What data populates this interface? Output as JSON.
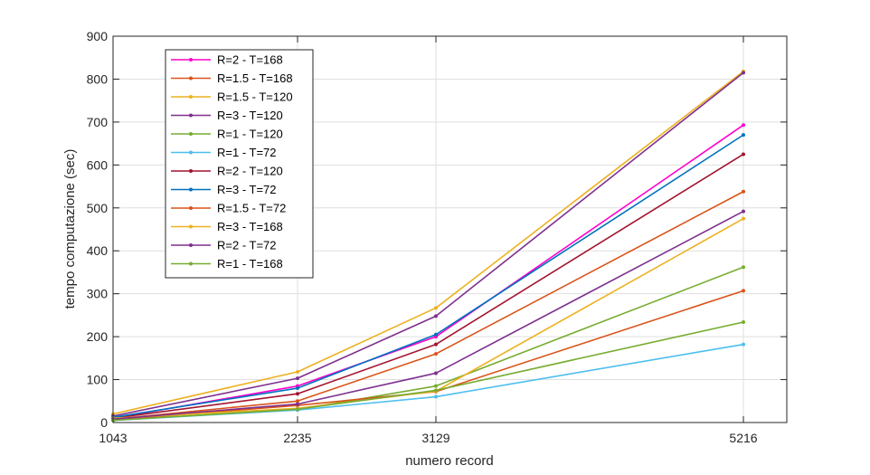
{
  "chart_data": {
    "type": "line",
    "xlabel": "numero record",
    "ylabel": "tempo computazione (sec)",
    "x": [
      1043,
      2235,
      3129,
      5216
    ],
    "x_tick_labels": [
      "1043",
      "2235",
      "3129",
      "5216"
    ],
    "ylim": [
      0,
      900
    ],
    "y_ticks": [
      0,
      100,
      200,
      300,
      400,
      500,
      600,
      700,
      800,
      900
    ],
    "grid": true,
    "legend_position": "top-left",
    "series": [
      {
        "name": "R=2 - T=168",
        "color": "#ff00cc",
        "values": [
          10,
          85,
          200,
          693
        ]
      },
      {
        "name": "R=1.5 - T=168",
        "color": "#d95319",
        "values": [
          8,
          50,
          160,
          538
        ]
      },
      {
        "name": "R=1.5 - T=120",
        "color": "#edb120",
        "values": [
          20,
          118,
          267,
          818
        ]
      },
      {
        "name": "R=3 - T=120",
        "color": "#7e2f8e",
        "values": [
          15,
          103,
          248,
          815
        ]
      },
      {
        "name": "R=1 - T=120",
        "color": "#77ac30",
        "values": [
          6,
          30,
          85,
          362
        ]
      },
      {
        "name": "R=1 - T=72",
        "color": "#4dbeee",
        "values": [
          5,
          29,
          60,
          182
        ]
      },
      {
        "name": "R=2 - T=120",
        "color": "#a2142f",
        "values": [
          10,
          67,
          182,
          625
        ]
      },
      {
        "name": "R=3 - T=72",
        "color": "#0072bd",
        "values": [
          12,
          80,
          205,
          670
        ]
      },
      {
        "name": "R=1.5 - T=72",
        "color": "#d95319",
        "values": [
          6,
          40,
          72,
          307
        ]
      },
      {
        "name": "R=3 - T=168",
        "color": "#edb120",
        "values": [
          10,
          33,
          73,
          475
        ]
      },
      {
        "name": "R=2 - T=72",
        "color": "#7e2f8e",
        "values": [
          8,
          43,
          115,
          492
        ]
      },
      {
        "name": "R=1 - T=168",
        "color": "#77ac30",
        "values": [
          5,
          31,
          75,
          234
        ]
      }
    ]
  }
}
